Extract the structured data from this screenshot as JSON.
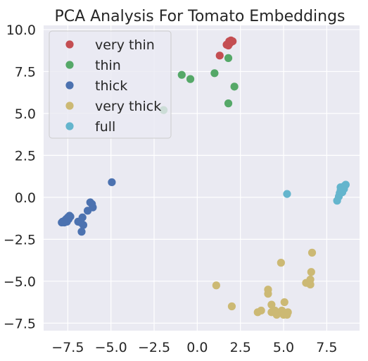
{
  "chart_data": {
    "type": "scatter",
    "title": "PCA Analysis For Tomato Embeddings",
    "xlabel": "",
    "ylabel": "",
    "xlim": [
      -8.9,
      9.4
    ],
    "ylim": [
      -7.95,
      10.25
    ],
    "xticks": [
      -7.5,
      -5.0,
      -2.5,
      0.0,
      2.5,
      5.0,
      7.5
    ],
    "xtick_labels": [
      "−7.5",
      "−5.0",
      "−2.5",
      "0.0",
      "2.5",
      "5.0",
      "7.5"
    ],
    "yticks": [
      -7.5,
      -5.0,
      -2.5,
      0.0,
      2.5,
      5.0,
      7.5,
      10.0
    ],
    "ytick_labels": [
      "−7.5",
      "−5.0",
      "−2.5",
      "0.0",
      "2.5",
      "5.0",
      "7.5",
      "10.0"
    ],
    "grid": true,
    "legend_position": "top-left",
    "series": [
      {
        "name": "very thin",
        "color": "#c44e52",
        "points": [
          [
            1.3,
            8.45
          ],
          [
            1.7,
            9.1
          ],
          [
            1.8,
            9.05
          ],
          [
            1.85,
            9.3
          ],
          [
            1.95,
            9.35
          ],
          [
            2.05,
            9.3
          ],
          [
            1.9,
            9.2
          ]
        ]
      },
      {
        "name": "thin",
        "color": "#55a868",
        "points": [
          [
            -1.95,
            5.2
          ],
          [
            -0.9,
            7.3
          ],
          [
            -0.4,
            7.05
          ],
          [
            1.0,
            7.4
          ],
          [
            1.8,
            8.3
          ],
          [
            1.8,
            5.6
          ],
          [
            2.15,
            6.6
          ]
        ]
      },
      {
        "name": "thick",
        "color": "#4c72b0",
        "points": [
          [
            -4.95,
            0.9
          ],
          [
            -7.4,
            -1.1
          ],
          [
            -7.5,
            -1.2
          ],
          [
            -7.35,
            -1.15
          ],
          [
            -7.6,
            -1.3
          ],
          [
            -7.7,
            -1.4
          ],
          [
            -7.8,
            -1.45
          ],
          [
            -7.85,
            -1.5
          ],
          [
            -7.7,
            -1.5
          ],
          [
            -7.55,
            -1.45
          ],
          [
            -7.45,
            -1.3
          ],
          [
            -6.9,
            -1.45
          ],
          [
            -6.75,
            -1.5
          ],
          [
            -6.65,
            -1.2
          ],
          [
            -6.6,
            -1.65
          ],
          [
            -6.7,
            -2.05
          ],
          [
            -6.35,
            -0.8
          ],
          [
            -6.2,
            -0.3
          ],
          [
            -6.1,
            -0.4
          ],
          [
            -6.05,
            -0.6
          ]
        ]
      },
      {
        "name": "very thick",
        "color": "#ccb974",
        "points": [
          [
            1.1,
            -5.25
          ],
          [
            2.0,
            -6.5
          ],
          [
            3.5,
            -6.85
          ],
          [
            3.7,
            -6.75
          ],
          [
            4.1,
            -5.5
          ],
          [
            4.1,
            -5.75
          ],
          [
            4.3,
            -6.4
          ],
          [
            4.3,
            -6.85
          ],
          [
            4.5,
            -6.75
          ],
          [
            4.6,
            -7.0
          ],
          [
            4.7,
            -6.9
          ],
          [
            4.85,
            -3.9
          ],
          [
            4.9,
            -6.75
          ],
          [
            5.0,
            -7.0
          ],
          [
            5.05,
            -6.25
          ],
          [
            5.1,
            -6.9
          ],
          [
            5.2,
            -7.0
          ],
          [
            5.25,
            -6.85
          ],
          [
            6.3,
            -5.1
          ],
          [
            6.55,
            -5.2
          ],
          [
            6.55,
            -4.9
          ],
          [
            6.6,
            -4.45
          ],
          [
            6.65,
            -3.3
          ]
        ]
      },
      {
        "name": "full",
        "color": "#64b5cd",
        "points": [
          [
            5.2,
            0.2
          ],
          [
            8.1,
            -0.2
          ],
          [
            8.2,
            0.05
          ],
          [
            8.25,
            0.25
          ],
          [
            8.3,
            0.4
          ],
          [
            8.35,
            0.55
          ],
          [
            8.4,
            0.45
          ],
          [
            8.45,
            0.6
          ],
          [
            8.5,
            0.65
          ],
          [
            8.55,
            0.7
          ],
          [
            8.6,
            0.75
          ],
          [
            8.4,
            0.3
          ],
          [
            8.3,
            0.6
          ],
          [
            8.5,
            0.5
          ]
        ]
      }
    ]
  }
}
